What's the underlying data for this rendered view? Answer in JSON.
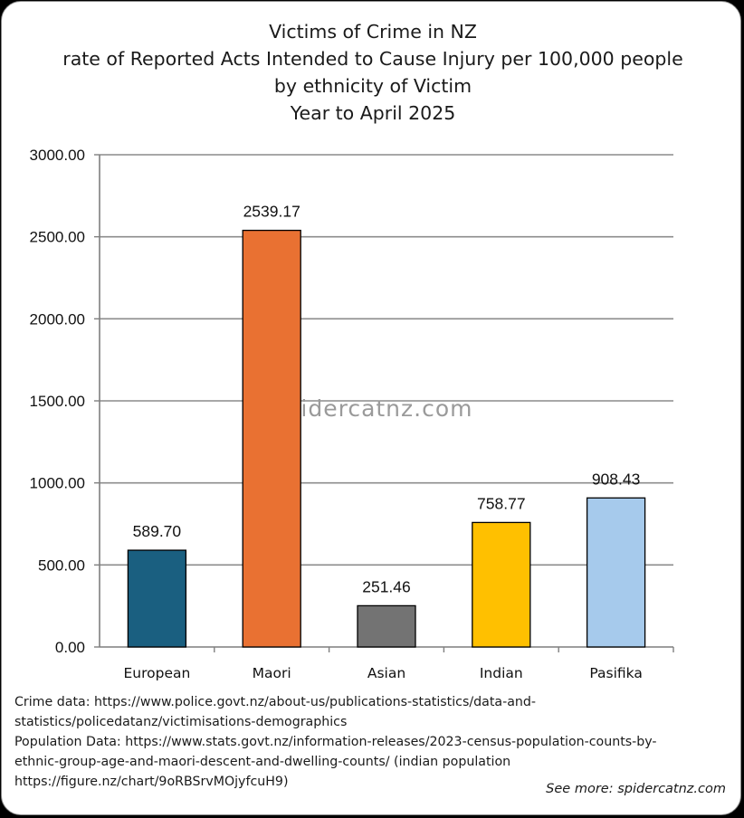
{
  "chart_data": {
    "type": "bar",
    "title": [
      "Victims of Crime in NZ",
      "rate of Reported Acts Intended to Cause Injury per 100,000 people",
      "by ethnicity of Victim",
      "Year to April 2025"
    ],
    "categories": [
      "European",
      "Maori",
      "Asian",
      "Indian",
      "Pasifika"
    ],
    "values": [
      589.7,
      2539.17,
      251.46,
      758.77,
      908.43
    ],
    "data_labels": [
      "589.70",
      "2539.17",
      "251.46",
      "758.77",
      "908.43"
    ],
    "colors": [
      "#1a5f80",
      "#e97132",
      "#737373",
      "#ffc000",
      "#a6caec"
    ],
    "bar_outline": "#000000",
    "ylim": [
      0,
      3000
    ],
    "yticks": [
      0,
      500,
      1000,
      1500,
      2000,
      2500,
      3000
    ],
    "ytick_labels": [
      "0.00",
      "500.00",
      "1000.00",
      "1500.00",
      "2000.00",
      "2500.00",
      "3000.00"
    ],
    "xlabel": "",
    "ylabel": "",
    "grid": true,
    "legend": "none"
  },
  "watermark": "spidercatnz.com",
  "notes": [
    "Crime data: https://www.police.govt.nz/about-us/publications-statistics/data-and-",
    "statistics/policedatanz/victimisations-demographics",
    "Population Data: https://www.stats.govt.nz/information-releases/2023-census-population-counts-by-",
    "ethnic-group-age-and-maori-descent-and-dwelling-counts/ (indian population",
    "https://figure.nz/chart/9oRBSrvMOjyfcuH9)"
  ],
  "see_more": "See more: spidercatnz.com"
}
